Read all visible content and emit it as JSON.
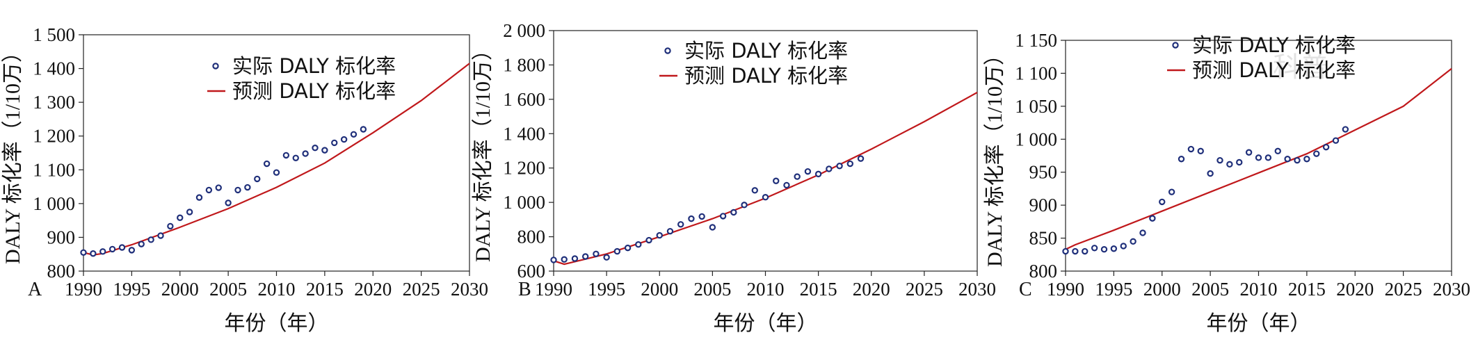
{
  "colors": {
    "observed_marker": "#1f2f7a",
    "predicted_line": "#c0181b",
    "frame": "#222222"
  },
  "chart_data": [
    {
      "type": "scatter",
      "panel_label": "A",
      "xlabel": "年份（年）",
      "ylabel": "DALY 标化率（1/10万）",
      "xlim": [
        1990,
        2030
      ],
      "ylim": [
        800,
        1500
      ],
      "xticks": [
        "1990",
        "1995",
        "2000",
        "2005",
        "2010",
        "2015",
        "2020",
        "2025",
        "2030"
      ],
      "yticks": [
        "800",
        "900",
        "1 000",
        "1 100",
        "1 200",
        "1 300",
        "1 400",
        "1 500"
      ],
      "legend_position": "upper-center",
      "series": [
        {
          "name": "实际 DALY 标化率",
          "kind": "points",
          "x": [
            1990,
            1991,
            1992,
            1993,
            1994,
            1995,
            1996,
            1997,
            1998,
            1999,
            2000,
            2001,
            2002,
            2003,
            2004,
            2005,
            2006,
            2007,
            2008,
            2009,
            2010,
            2011,
            2012,
            2013,
            2014,
            2015,
            2016,
            2017,
            2018,
            2019
          ],
          "y": [
            855,
            852,
            858,
            865,
            870,
            862,
            880,
            893,
            905,
            933,
            958,
            975,
            1018,
            1040,
            1047,
            1002,
            1040,
            1048,
            1073,
            1118,
            1092,
            1143,
            1135,
            1148,
            1165,
            1158,
            1180,
            1190,
            1205,
            1220
          ]
        },
        {
          "name": "预测 DALY 标化率",
          "kind": "line",
          "x": [
            1990,
            1991,
            1992,
            1995,
            2000,
            2005,
            2010,
            2015,
            2020,
            2025,
            2030
          ],
          "y": [
            855,
            848,
            852,
            878,
            930,
            985,
            1048,
            1120,
            1210,
            1305,
            1415
          ]
        }
      ]
    },
    {
      "type": "scatter",
      "panel_label": "B",
      "xlabel": "年份（年）",
      "ylabel": "DALY 标化率（1/10万）",
      "xlim": [
        1990,
        2030
      ],
      "ylim": [
        600,
        2000
      ],
      "xticks": [
        "1990",
        "1995",
        "2000",
        "2005",
        "2010",
        "2015",
        "2020",
        "2025",
        "2030"
      ],
      "yticks": [
        "600",
        "800",
        "1 000",
        "1 200",
        "1 400",
        "1 600",
        "1 800",
        "2 000"
      ],
      "legend_position": "upper-center",
      "series": [
        {
          "name": "实际 DALY 标化率",
          "kind": "points",
          "x": [
            1990,
            1991,
            1992,
            1993,
            1994,
            1995,
            1996,
            1997,
            1998,
            1999,
            2000,
            2001,
            2002,
            2003,
            2004,
            2005,
            2006,
            2007,
            2008,
            2009,
            2010,
            2011,
            2012,
            2013,
            2014,
            2015,
            2016,
            2017,
            2018,
            2019
          ],
          "y": [
            665,
            668,
            673,
            685,
            700,
            680,
            715,
            735,
            755,
            780,
            808,
            832,
            872,
            905,
            918,
            855,
            920,
            942,
            985,
            1070,
            1030,
            1125,
            1100,
            1150,
            1180,
            1165,
            1195,
            1212,
            1225,
            1255
          ]
        },
        {
          "name": "预测 DALY 标化率",
          "kind": "line",
          "x": [
            1990,
            1991,
            1992,
            1995,
            2000,
            2005,
            2010,
            2015,
            2020,
            2025,
            2030
          ],
          "y": [
            660,
            640,
            655,
            700,
            800,
            905,
            1025,
            1160,
            1310,
            1470,
            1640
          ]
        }
      ]
    },
    {
      "type": "scatter",
      "panel_label": "C",
      "xlabel": "年份（年）",
      "ylabel": "DALY 标化率（1/10万）",
      "xlim": [
        1990,
        2030
      ],
      "ylim": [
        800,
        1150
      ],
      "xticks": [
        "1990",
        "1995",
        "2000",
        "2005",
        "2010",
        "2015",
        "2020",
        "2025",
        "2030"
      ],
      "yticks": [
        "800",
        "850",
        "900",
        "950",
        "1 000",
        "1 050",
        "1 100",
        "1 150"
      ],
      "legend_position": "upper-center",
      "series": [
        {
          "name": "实际 DALY 标化率",
          "kind": "points",
          "x": [
            1990,
            1991,
            1992,
            1993,
            1994,
            1995,
            1996,
            1997,
            1998,
            1999,
            2000,
            2001,
            2002,
            2003,
            2004,
            2005,
            2006,
            2007,
            2008,
            2009,
            2010,
            2011,
            2012,
            2013,
            2014,
            2015,
            2016,
            2017,
            2018,
            2019
          ],
          "y": [
            830,
            830,
            830,
            835,
            833,
            834,
            838,
            845,
            858,
            880,
            905,
            920,
            970,
            985,
            982,
            948,
            968,
            962,
            965,
            980,
            972,
            972,
            982,
            970,
            968,
            970,
            978,
            988,
            998,
            1015
          ]
        },
        {
          "name": "预测 DALY 标化率",
          "kind": "line",
          "x": [
            1990,
            1991,
            1995,
            2000,
            2005,
            2010,
            2015,
            2020,
            2025,
            2030
          ],
          "y": [
            833,
            840,
            862,
            891,
            920,
            949,
            978,
            1014,
            1050,
            1107
          ]
        }
      ]
    }
  ]
}
